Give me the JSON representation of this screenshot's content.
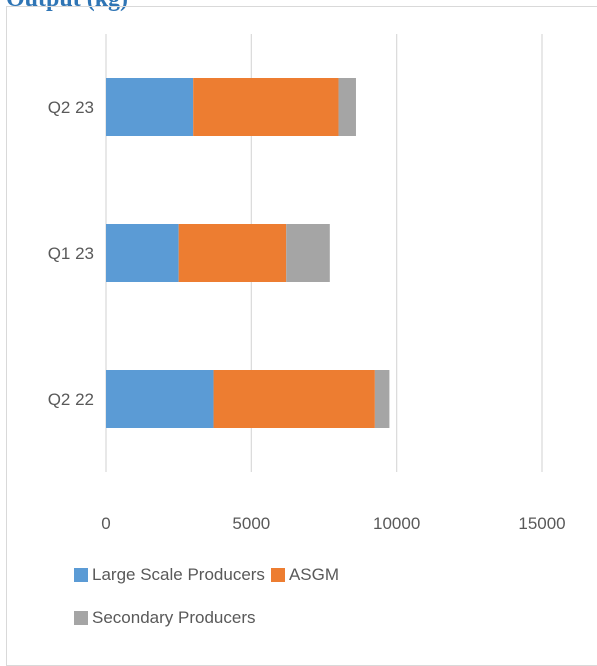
{
  "heading": "Output (kg)",
  "chart_data": {
    "type": "bar",
    "orientation": "horizontal",
    "stacked": true,
    "title": "",
    "xlabel": "",
    "ylabel": "",
    "categories": [
      "Q2 22",
      "Q1 23",
      "Q2 23"
    ],
    "series": [
      {
        "name": "Large Scale Producers",
        "color": "#5b9bd5",
        "values": [
          3700,
          2500,
          3000
        ]
      },
      {
        "name": "ASGM",
        "color": "#ed7d31",
        "values": [
          5550,
          3700,
          5000
        ]
      },
      {
        "name": "Secondary Producers",
        "color": "#a5a5a5",
        "values": [
          500,
          1500,
          600
        ]
      }
    ],
    "xlim": [
      0,
      15000
    ],
    "xticks": [
      0,
      5000,
      10000,
      15000
    ],
    "xtick_labels": [
      "0",
      "5000",
      "10000",
      "15000"
    ],
    "grid": true,
    "legend_position": "bottom"
  }
}
